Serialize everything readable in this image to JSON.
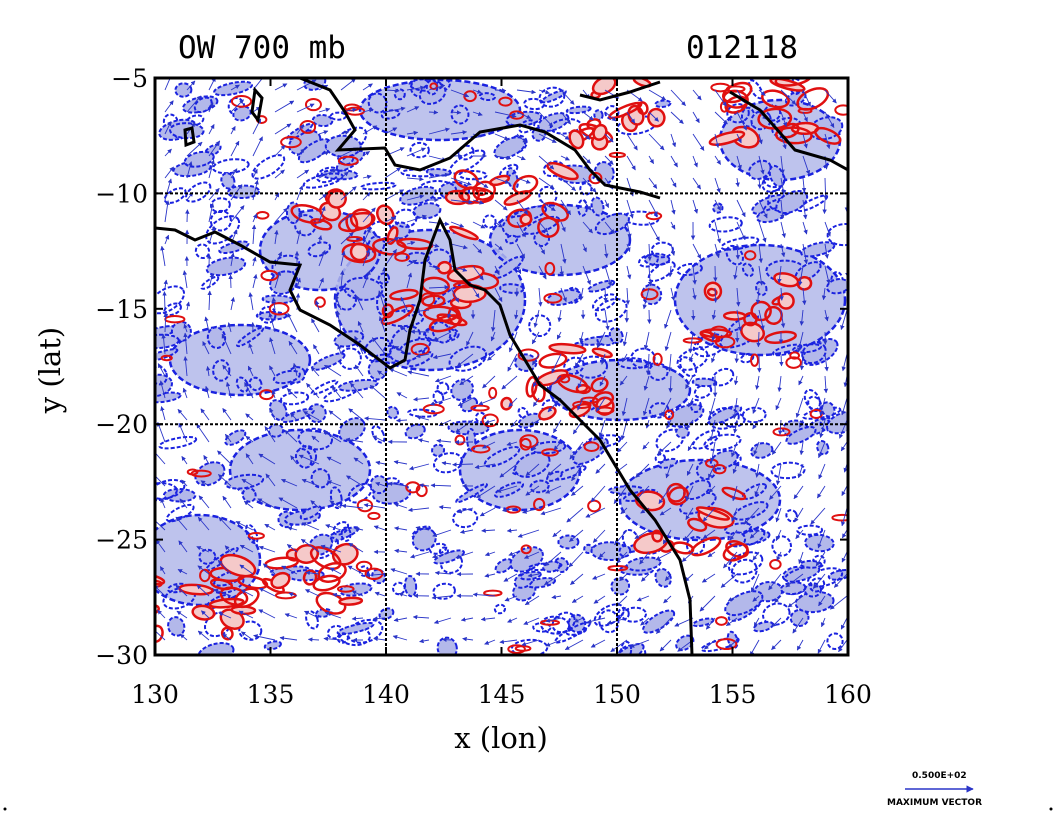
{
  "chart_data": {
    "type": "heatmap",
    "title": "OW 700 mb",
    "title_right": "012118",
    "xlabel": "x (lon)",
    "ylabel": "y (lat)",
    "xlim": [
      130,
      160
    ],
    "ylim": [
      -30,
      -5
    ],
    "xticks": [
      130,
      135,
      140,
      145,
      150,
      155,
      160
    ],
    "yticks": [
      -5,
      -10,
      -15,
      -20,
      -25,
      -30
    ],
    "xtick_labels": [
      "130",
      "135",
      "140",
      "145",
      "150",
      "155",
      "160"
    ],
    "ytick_labels": [
      "−5",
      "−10",
      "−15",
      "−20",
      "−25",
      "−30"
    ],
    "gridlines_x": [
      140,
      150
    ],
    "gridlines_y": [
      -10,
      -20
    ],
    "grid": true,
    "legend": {
      "vector_value": "0.500E+02",
      "vector_label": "MAXIMUM VECTOR"
    },
    "colors": {
      "negative_contour": "#1a22e0",
      "negative_fill": "#b3b8ea",
      "positive_contour": "#e01010",
      "positive_fill": "#f5c9c9",
      "vector": "#2a35c8",
      "coastline": "#000000"
    }
  }
}
